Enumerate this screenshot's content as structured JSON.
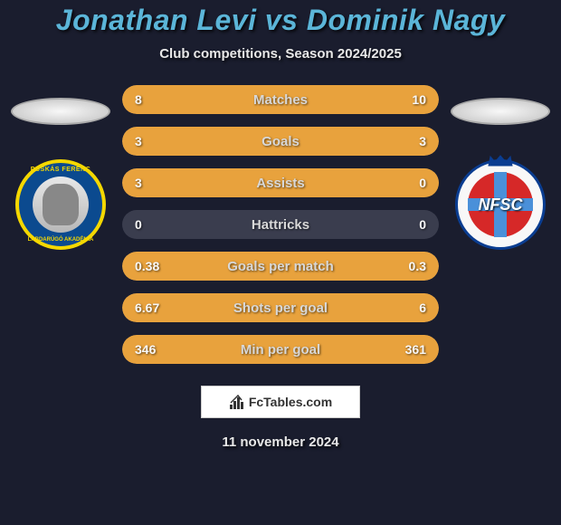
{
  "title": "Jonathan Levi vs Dominik Nagy",
  "subtitle": "Club competitions, Season 2024/2025",
  "date": "11 november 2024",
  "footer": {
    "text": "FcTables.com"
  },
  "colors": {
    "background": "#1a1d2e",
    "title": "#5bb5d8",
    "text": "#e8e8e8",
    "bar_bg": "#3a3d4e",
    "bar_fill": "#e8a23d",
    "bar_label": "#d8d8d8",
    "bar_value": "#f8f8f8"
  },
  "stats": [
    {
      "label": "Matches",
      "left_val": "8",
      "right_val": "10",
      "left_pct": 44,
      "right_pct": 56
    },
    {
      "label": "Goals",
      "left_val": "3",
      "right_val": "3",
      "left_pct": 50,
      "right_pct": 50
    },
    {
      "label": "Assists",
      "left_val": "3",
      "right_val": "0",
      "left_pct": 100,
      "right_pct": 0
    },
    {
      "label": "Hattricks",
      "left_val": "0",
      "right_val": "0",
      "left_pct": 0,
      "right_pct": 0
    },
    {
      "label": "Goals per match",
      "left_val": "0.38",
      "right_val": "0.3",
      "left_pct": 56,
      "right_pct": 44
    },
    {
      "label": "Shots per goal",
      "left_val": "6.67",
      "right_val": "6",
      "left_pct": 53,
      "right_pct": 47
    },
    {
      "label": "Min per goal",
      "left_val": "346",
      "right_val": "361",
      "left_pct": 49,
      "right_pct": 51
    }
  ],
  "badge_left": {
    "text_top": "PUSKÁS FERENC",
    "text_bottom": "LABDARÚGÓ AKADÉMIA"
  },
  "badge_right": {
    "text": "NFSC"
  }
}
